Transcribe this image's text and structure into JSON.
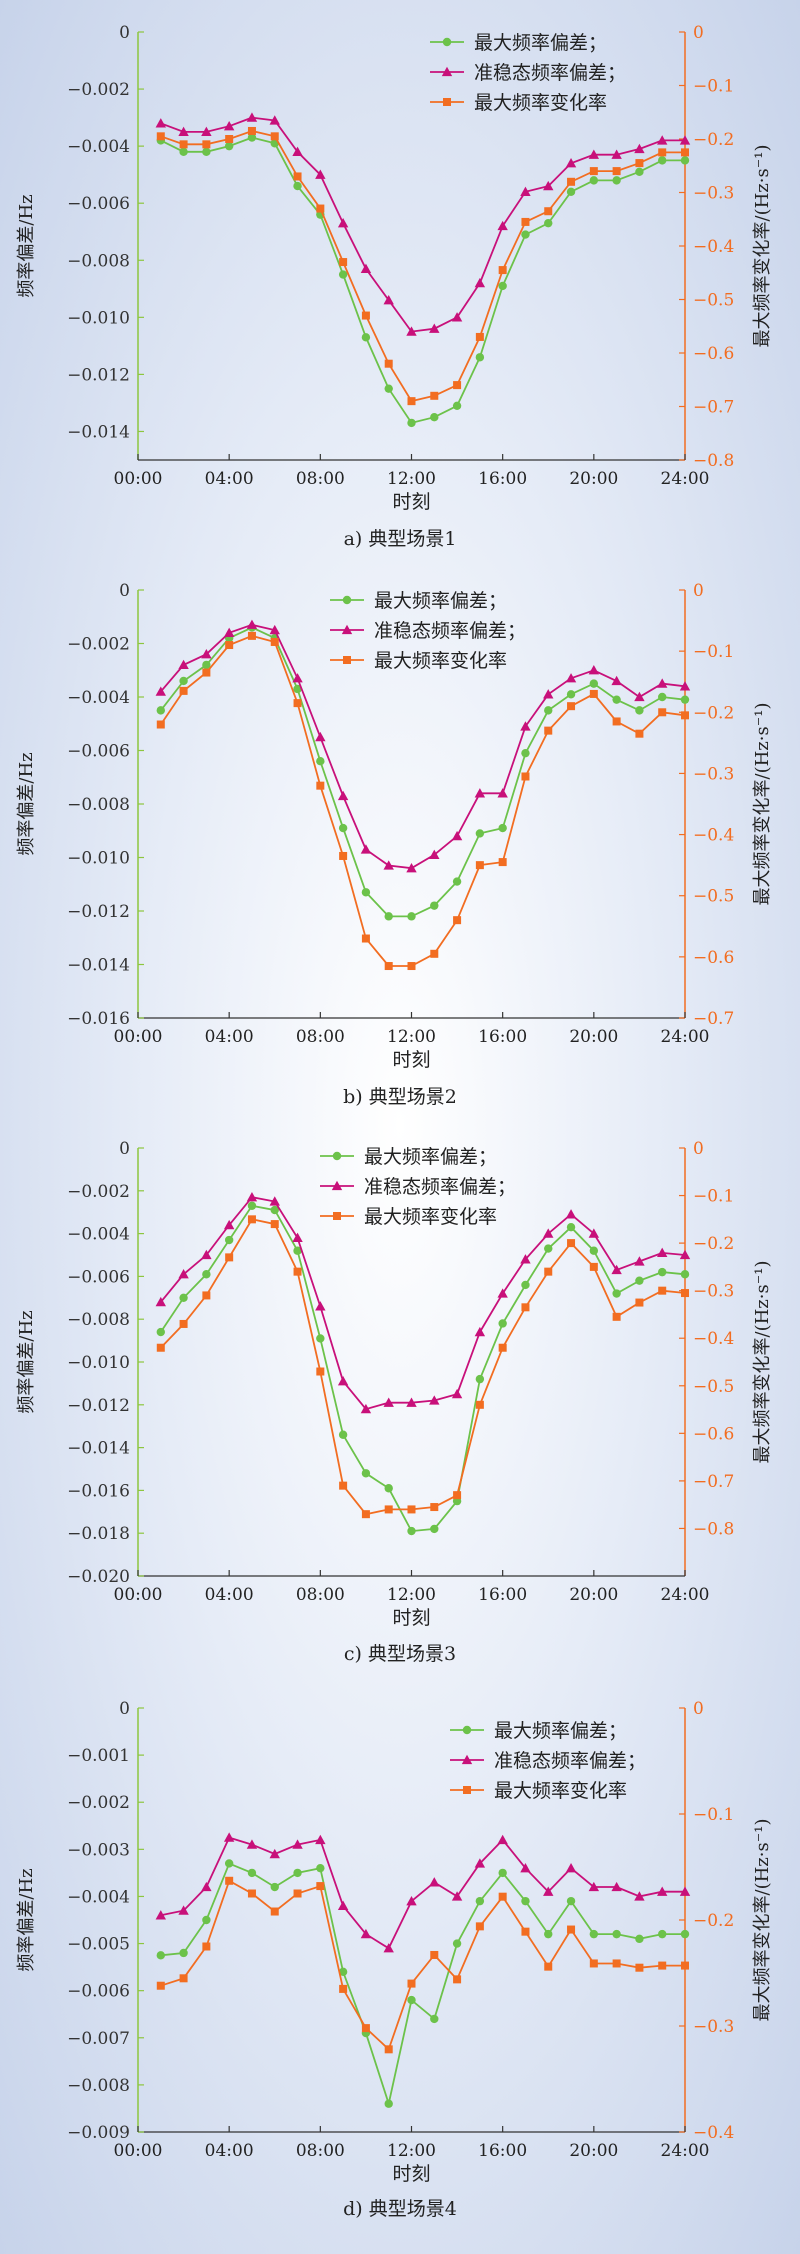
{
  "chart_data": [
    {
      "type": "line",
      "caption": "a) 典型场景1",
      "xlabel": "时刻",
      "ylabel": "频率偏差/Hz",
      "y2label": "最大频率变化率/(Hz·s⁻¹)",
      "xticks": [
        "00:00",
        "04:00",
        "08:00",
        "12:00",
        "16:00",
        "20:00",
        "24:00"
      ],
      "xlim": [
        0,
        24
      ],
      "ylim": [
        -0.015,
        0
      ],
      "yticks": [
        "0",
        "−0.002",
        "−0.004",
        "−0.006",
        "−0.008",
        "−0.010",
        "−0.012",
        "−0.014"
      ],
      "y2lim": [
        -0.8,
        0
      ],
      "y2ticks": [
        "0",
        "−0.1",
        "−0.2",
        "−0.3",
        "−0.4",
        "−0.5",
        "−0.6",
        "−0.7",
        "−0.8"
      ],
      "legend_position": "top-right",
      "x": [
        1,
        2,
        3,
        4,
        5,
        6,
        7,
        8,
        9,
        10,
        11,
        12,
        13,
        14,
        15,
        16,
        17,
        18,
        19,
        20,
        21,
        22,
        23,
        24
      ],
      "series": [
        {
          "name": "最大频率偏差；",
          "axis": "left",
          "marker": "circle",
          "color": "#6cc24a",
          "values": [
            -0.0038,
            -0.0042,
            -0.0042,
            -0.004,
            -0.0037,
            -0.0039,
            -0.0054,
            -0.0064,
            -0.0085,
            -0.0107,
            -0.0125,
            -0.0137,
            -0.0135,
            -0.0131,
            -0.0114,
            -0.0089,
            -0.0071,
            -0.0067,
            -0.0056,
            -0.0052,
            -0.0052,
            -0.0049,
            -0.0045,
            -0.0045
          ]
        },
        {
          "name": "准稳态频率偏差；",
          "axis": "left",
          "marker": "triangle",
          "color": "#c8107a",
          "values": [
            -0.0032,
            -0.0035,
            -0.0035,
            -0.0033,
            -0.003,
            -0.0031,
            -0.0042,
            -0.005,
            -0.0067,
            -0.0083,
            -0.0094,
            -0.0105,
            -0.0104,
            -0.01,
            -0.0088,
            -0.0068,
            -0.0056,
            -0.0054,
            -0.0046,
            -0.0043,
            -0.0043,
            -0.0041,
            -0.0038,
            -0.0038
          ]
        },
        {
          "name": "最大频率变化率",
          "axis": "right",
          "marker": "square",
          "color": "#f26d21",
          "values": [
            -0.195,
            -0.21,
            -0.21,
            -0.2,
            -0.185,
            -0.195,
            -0.27,
            -0.33,
            -0.43,
            -0.53,
            -0.62,
            -0.69,
            -0.68,
            -0.66,
            -0.57,
            -0.445,
            -0.355,
            -0.335,
            -0.28,
            -0.26,
            -0.26,
            -0.245,
            -0.225,
            -0.225
          ]
        }
      ]
    },
    {
      "type": "line",
      "caption": "b) 典型场景2",
      "xlabel": "时刻",
      "ylabel": "频率偏差/Hz",
      "y2label": "最大频率变化率/(Hz·s⁻¹)",
      "xticks": [
        "00:00",
        "04:00",
        "08:00",
        "12:00",
        "16:00",
        "20:00",
        "24:00"
      ],
      "xlim": [
        0,
        24
      ],
      "ylim": [
        -0.016,
        0
      ],
      "yticks": [
        "0",
        "−0.002",
        "−0.004",
        "−0.006",
        "−0.008",
        "−0.010",
        "−0.012",
        "−0.014",
        "−0.016"
      ],
      "y2lim": [
        -0.7,
        0
      ],
      "y2ticks": [
        "0",
        "−0.1",
        "−0.2",
        "−0.3",
        "−0.4",
        "−0.5",
        "−0.6",
        "−0.7"
      ],
      "legend_position": "top-center",
      "x": [
        1,
        2,
        3,
        4,
        5,
        6,
        7,
        8,
        9,
        10,
        11,
        12,
        13,
        14,
        15,
        16,
        17,
        18,
        19,
        20,
        21,
        22,
        23,
        24
      ],
      "series": [
        {
          "name": "最大频率偏差；",
          "axis": "left",
          "marker": "circle",
          "color": "#6cc24a",
          "values": [
            -0.0045,
            -0.0034,
            -0.0028,
            -0.0018,
            -0.0014,
            -0.0018,
            -0.0037,
            -0.0064,
            -0.0089,
            -0.0113,
            -0.0122,
            -0.0122,
            -0.0118,
            -0.0109,
            -0.0091,
            -0.0089,
            -0.0061,
            -0.0045,
            -0.0039,
            -0.0035,
            -0.0041,
            -0.0045,
            -0.004,
            -0.0041
          ]
        },
        {
          "name": "准稳态频率偏差；",
          "axis": "left",
          "marker": "triangle",
          "color": "#c8107a",
          "values": [
            -0.0038,
            -0.0028,
            -0.0024,
            -0.0016,
            -0.0013,
            -0.0015,
            -0.0033,
            -0.0055,
            -0.0077,
            -0.0097,
            -0.0103,
            -0.0104,
            -0.0099,
            -0.0092,
            -0.0076,
            -0.0076,
            -0.0051,
            -0.0039,
            -0.0033,
            -0.003,
            -0.0034,
            -0.004,
            -0.0035,
            -0.0036
          ]
        },
        {
          "name": "最大频率变化率",
          "axis": "right",
          "marker": "square",
          "color": "#f26d21",
          "values": [
            -0.22,
            -0.165,
            -0.135,
            -0.09,
            -0.075,
            -0.085,
            -0.185,
            -0.32,
            -0.435,
            -0.57,
            -0.615,
            -0.615,
            -0.595,
            -0.54,
            -0.45,
            -0.445,
            -0.305,
            -0.23,
            -0.19,
            -0.17,
            -0.215,
            -0.235,
            -0.2,
            -0.205
          ]
        }
      ]
    },
    {
      "type": "line",
      "caption": "c) 典型场景3",
      "xlabel": "时刻",
      "ylabel": "频率偏差/Hz",
      "y2label": "最大频率变化率/(Hz·s⁻¹)",
      "xticks": [
        "00:00",
        "04:00",
        "08:00",
        "12:00",
        "16:00",
        "20:00",
        "24:00"
      ],
      "xlim": [
        0,
        24
      ],
      "ylim": [
        -0.02,
        0
      ],
      "yticks": [
        "0",
        "−0.002",
        "−0.004",
        "−0.006",
        "−0.008",
        "−0.010",
        "−0.012",
        "−0.014",
        "−0.016",
        "−0.018",
        "−0.020"
      ],
      "y2lim": [
        -0.9,
        0
      ],
      "y2ticks": [
        "0",
        "−0.1",
        "−0.2",
        "−0.3",
        "−0.4",
        "−0.5",
        "−0.6",
        "−0.7",
        "−0.8"
      ],
      "legend_position": "top-center",
      "x": [
        1,
        2,
        3,
        4,
        5,
        6,
        7,
        8,
        9,
        10,
        11,
        12,
        13,
        14,
        15,
        16,
        17,
        18,
        19,
        20,
        21,
        22,
        23,
        24
      ],
      "series": [
        {
          "name": "最大频率偏差；",
          "axis": "left",
          "marker": "circle",
          "color": "#6cc24a",
          "values": [
            -0.0086,
            -0.007,
            -0.0059,
            -0.0043,
            -0.0027,
            -0.0029,
            -0.0048,
            -0.0089,
            -0.0134,
            -0.0152,
            -0.0159,
            -0.0179,
            -0.0178,
            -0.0165,
            -0.0108,
            -0.0082,
            -0.0064,
            -0.0047,
            -0.0037,
            -0.0048,
            -0.0068,
            -0.0062,
            -0.0058,
            -0.0059
          ]
        },
        {
          "name": "准稳态频率偏差；",
          "axis": "left",
          "marker": "triangle",
          "color": "#c8107a",
          "values": [
            -0.0072,
            -0.0059,
            -0.005,
            -0.0036,
            -0.0023,
            -0.0025,
            -0.0042,
            -0.0074,
            -0.0109,
            -0.0122,
            -0.0119,
            -0.0119,
            -0.0118,
            -0.0115,
            -0.0086,
            -0.0068,
            -0.0052,
            -0.004,
            -0.0031,
            -0.004,
            -0.0057,
            -0.0053,
            -0.0049,
            -0.005
          ]
        },
        {
          "name": "最大频率变化率",
          "axis": "right",
          "marker": "square",
          "color": "#f26d21",
          "values": [
            -0.42,
            -0.37,
            -0.31,
            -0.23,
            -0.15,
            -0.16,
            -0.26,
            -0.47,
            -0.71,
            -0.77,
            -0.76,
            -0.76,
            -0.755,
            -0.73,
            -0.54,
            -0.42,
            -0.335,
            -0.26,
            -0.2,
            -0.25,
            -0.355,
            -0.325,
            -0.3,
            -0.305
          ]
        }
      ]
    },
    {
      "type": "line",
      "caption": "d) 典型场景4",
      "xlabel": "时刻",
      "ylabel": "频率偏差/Hz",
      "y2label": "最大频率变化率/(Hz·s⁻¹)",
      "xticks": [
        "00:00",
        "04:00",
        "08:00",
        "12:00",
        "16:00",
        "20:00",
        "24:00"
      ],
      "xlim": [
        0,
        24
      ],
      "ylim": [
        -0.009,
        0
      ],
      "yticks": [
        "0",
        "−0.001",
        "−0.002",
        "−0.003",
        "−0.004",
        "−0.005",
        "−0.006",
        "−0.007",
        "−0.008",
        "−0.009"
      ],
      "y2lim": [
        -0.4,
        0
      ],
      "y2ticks": [
        "0",
        "−0.1",
        "−0.2",
        "−0.3",
        "−0.4"
      ],
      "legend_position": "top-right",
      "x": [
        1,
        2,
        3,
        4,
        5,
        6,
        7,
        8,
        9,
        10,
        11,
        12,
        13,
        14,
        15,
        16,
        17,
        18,
        19,
        20,
        21,
        22,
        23,
        24
      ],
      "series": [
        {
          "name": "最大频率偏差；",
          "axis": "left",
          "marker": "circle",
          "color": "#6cc24a",
          "values": [
            -0.00525,
            -0.0052,
            -0.0045,
            -0.0033,
            -0.0035,
            -0.0038,
            -0.0035,
            -0.0034,
            -0.0056,
            -0.0069,
            -0.0084,
            -0.0062,
            -0.0066,
            -0.005,
            -0.0041,
            -0.0035,
            -0.0041,
            -0.0048,
            -0.0041,
            -0.0048,
            -0.0048,
            -0.0049,
            -0.0048,
            -0.0048
          ]
        },
        {
          "name": "准稳态频率偏差；",
          "axis": "left",
          "marker": "triangle",
          "color": "#c8107a",
          "values": [
            -0.0044,
            -0.0043,
            -0.0038,
            -0.00275,
            -0.0029,
            -0.0031,
            -0.0029,
            -0.0028,
            -0.0042,
            -0.0048,
            -0.0051,
            -0.0041,
            -0.0037,
            -0.004,
            -0.0033,
            -0.0028,
            -0.0034,
            -0.0039,
            -0.0034,
            -0.0038,
            -0.0038,
            -0.004,
            -0.0039,
            -0.0039
          ]
        },
        {
          "name": "最大频率变化率",
          "axis": "right",
          "marker": "square",
          "color": "#f26d21",
          "values": [
            -0.262,
            -0.255,
            -0.225,
            -0.163,
            -0.175,
            -0.192,
            -0.175,
            -0.168,
            -0.265,
            -0.302,
            -0.322,
            -0.26,
            -0.233,
            -0.256,
            -0.206,
            -0.178,
            -0.211,
            -0.244,
            -0.209,
            -0.241,
            -0.241,
            -0.245,
            -0.243,
            -0.243
          ]
        }
      ]
    }
  ]
}
